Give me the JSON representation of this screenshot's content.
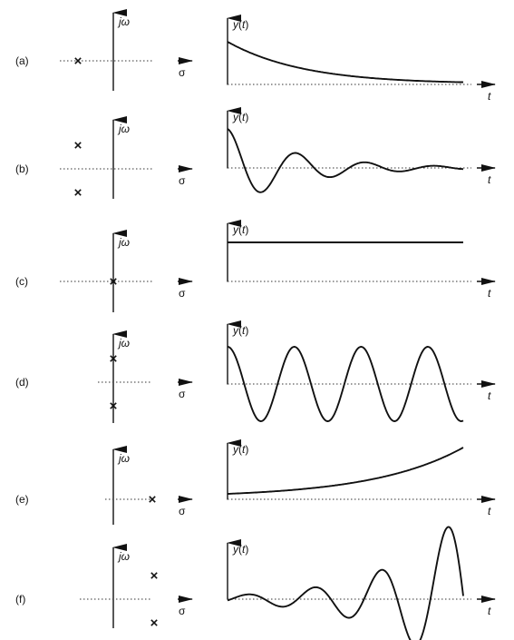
{
  "axis_labels": {
    "jw": "jω",
    "sigma": "σ",
    "yt_y": "y",
    "yt_t": "t",
    "t": "t"
  },
  "panels": [
    {
      "id": "a",
      "label": "(a)",
      "poles": [
        {
          "re": -1,
          "im": 0
        }
      ],
      "response": "decaying-exponential"
    },
    {
      "id": "b",
      "label": "(b)",
      "poles": [
        {
          "re": -1,
          "im": 1
        },
        {
          "re": -1,
          "im": -1
        }
      ],
      "response": "damped-oscillation"
    },
    {
      "id": "c",
      "label": "(c)",
      "poles": [
        {
          "re": 0,
          "im": 0
        }
      ],
      "response": "constant"
    },
    {
      "id": "d",
      "label": "(d)",
      "poles": [
        {
          "re": 0,
          "im": 1
        },
        {
          "re": 0,
          "im": -1
        }
      ],
      "response": "sustained-oscillation"
    },
    {
      "id": "e",
      "label": "(e)",
      "poles": [
        {
          "re": 1,
          "im": 0
        }
      ],
      "response": "growing-exponential"
    },
    {
      "id": "f",
      "label": "(f)",
      "poles": [
        {
          "re": 1,
          "im": 1
        },
        {
          "re": 1,
          "im": -1
        }
      ],
      "response": "growing-oscillation"
    }
  ]
}
